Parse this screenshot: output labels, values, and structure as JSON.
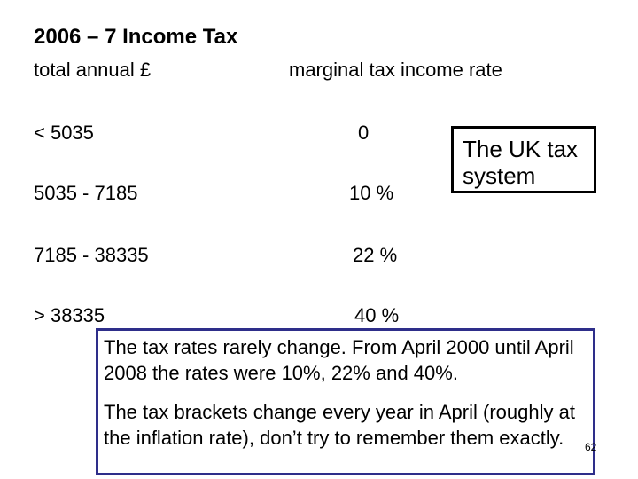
{
  "title": "2006 – 7  Income Tax",
  "headers": {
    "income": "total annual £",
    "rate": "marginal tax income rate"
  },
  "rows": [
    {
      "income": "< 5035",
      "rate": "0"
    },
    {
      "income": "5035  - 7185",
      "rate": "10 %"
    },
    {
      "income": "7185  - 38335",
      "rate": "22 %"
    },
    {
      "income": "> 38335",
      "rate": "40 %"
    }
  ],
  "callout": "The UK tax system",
  "notes": {
    "p1": "The tax rates rarely change.  From April 2000 until April 2008 the rates were 10%, 22% and 40%.",
    "p2": "The tax brackets change every year in April (roughly at the inflation rate), don’t try to remember them exactly."
  },
  "page_number": "62"
}
